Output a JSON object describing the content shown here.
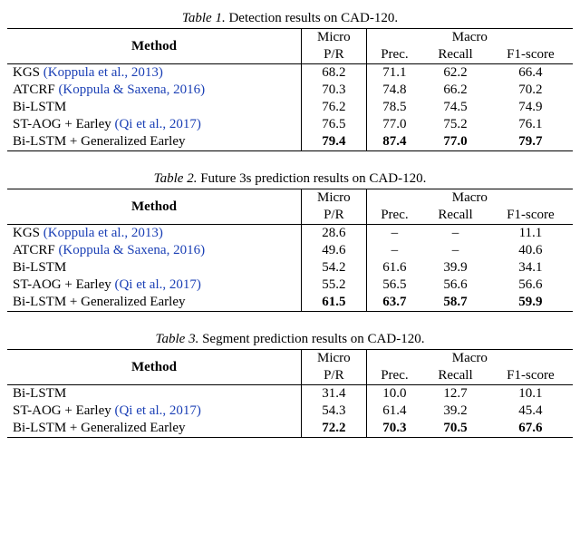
{
  "tables": [
    {
      "caption_lead": "Table 1.",
      "caption_text": " Detection results on CAD-120.",
      "header": {
        "method": "Method",
        "micro": "Micro",
        "micro_sub": "P/R",
        "macro": "Macro",
        "macro_cols": [
          "Prec.",
          "Recall",
          "F1-score"
        ]
      },
      "rows": [
        {
          "method_plain": "KGS ",
          "method_cite": "(Koppula et al., 2013)",
          "micro": "68.2",
          "prec": "71.1",
          "recall": "62.2",
          "f1": "66.4",
          "bold": false
        },
        {
          "method_plain": "ATCRF ",
          "method_cite": "(Koppula & Saxena, 2016)",
          "micro": "70.3",
          "prec": "74.8",
          "recall": "66.2",
          "f1": "70.2",
          "bold": false
        },
        {
          "method_plain": "Bi-LSTM",
          "method_cite": "",
          "micro": "76.2",
          "prec": "78.5",
          "recall": "74.5",
          "f1": "74.9",
          "bold": false
        },
        {
          "method_plain": "ST-AOG + Earley ",
          "method_cite": "(Qi et al., 2017)",
          "micro": "76.5",
          "prec": "77.0",
          "recall": "75.2",
          "f1": "76.1",
          "bold": false
        },
        {
          "method_plain": "Bi-LSTM + Generalized Earley",
          "method_cite": "",
          "micro": "79.4",
          "prec": "87.4",
          "recall": "77.0",
          "f1": "79.7",
          "bold": true
        }
      ]
    },
    {
      "caption_lead": "Table 2.",
      "caption_text": " Future 3s prediction results on CAD-120.",
      "header": {
        "method": "Method",
        "micro": "Micro",
        "micro_sub": "P/R",
        "macro": "Macro",
        "macro_cols": [
          "Prec.",
          "Recall",
          "F1-score"
        ]
      },
      "rows": [
        {
          "method_plain": "KGS ",
          "method_cite": "(Koppula et al., 2013)",
          "micro": "28.6",
          "prec": "–",
          "recall": "–",
          "f1": "11.1",
          "bold": false
        },
        {
          "method_plain": "ATCRF ",
          "method_cite": "(Koppula & Saxena, 2016)",
          "micro": "49.6",
          "prec": "–",
          "recall": "–",
          "f1": "40.6",
          "bold": false
        },
        {
          "method_plain": "Bi-LSTM",
          "method_cite": "",
          "micro": "54.2",
          "prec": "61.6",
          "recall": "39.9",
          "f1": "34.1",
          "bold": false
        },
        {
          "method_plain": "ST-AOG + Earley ",
          "method_cite": "(Qi et al., 2017)",
          "micro": "55.2",
          "prec": "56.5",
          "recall": "56.6",
          "f1": "56.6",
          "bold": false
        },
        {
          "method_plain": "Bi-LSTM + Generalized Earley",
          "method_cite": "",
          "micro": "61.5",
          "prec": "63.7",
          "recall": "58.7",
          "f1": "59.9",
          "bold": true
        }
      ]
    },
    {
      "caption_lead": "Table 3.",
      "caption_text": " Segment prediction results on CAD-120.",
      "header": {
        "method": "Method",
        "micro": "Micro",
        "micro_sub": "P/R",
        "macro": "Macro",
        "macro_cols": [
          "Prec.",
          "Recall",
          "F1-score"
        ]
      },
      "rows": [
        {
          "method_plain": "Bi-LSTM",
          "method_cite": "",
          "micro": "31.4",
          "prec": "10.0",
          "recall": "12.7",
          "f1": "10.1",
          "bold": false
        },
        {
          "method_plain": "ST-AOG + Earley ",
          "method_cite": "(Qi et al., 2017)",
          "micro": "54.3",
          "prec": "61.4",
          "recall": "39.2",
          "f1": "45.4",
          "bold": false
        },
        {
          "method_plain": "Bi-LSTM + Generalized Earley",
          "method_cite": "",
          "micro": "72.2",
          "prec": "70.3",
          "recall": "70.5",
          "f1": "67.6",
          "bold": true
        }
      ]
    }
  ]
}
